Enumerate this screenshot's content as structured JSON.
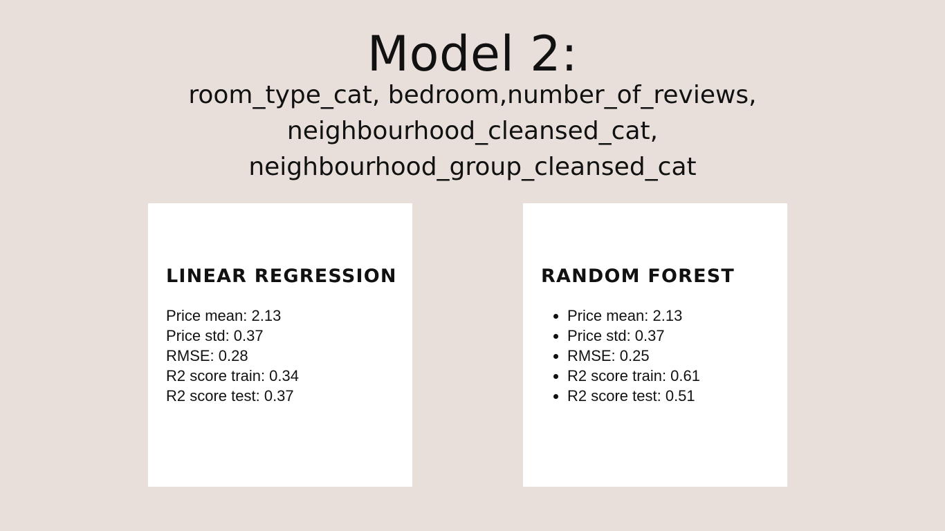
{
  "title": "Model 2:",
  "features": [
    "room_type_cat, bedroom,number_of_reviews,",
    "neighbourhood_cleansed_cat,",
    "neighbourhood_group_cleansed_cat"
  ],
  "cards": [
    {
      "heading": "LINEAR REGRESSION",
      "metrics": [
        "Price mean: 2.13",
        "Price std: 0.37",
        "RMSE: 0.28",
        "R2 score train: 0.34",
        "R2 score test: 0.37"
      ]
    },
    {
      "heading": "RANDOM FOREST",
      "metrics": [
        "Price mean: 2.13",
        "Price std: 0.37",
        "RMSE: 0.25",
        "R2 score train: 0.61",
        "R2 score test: 0.51"
      ]
    }
  ]
}
